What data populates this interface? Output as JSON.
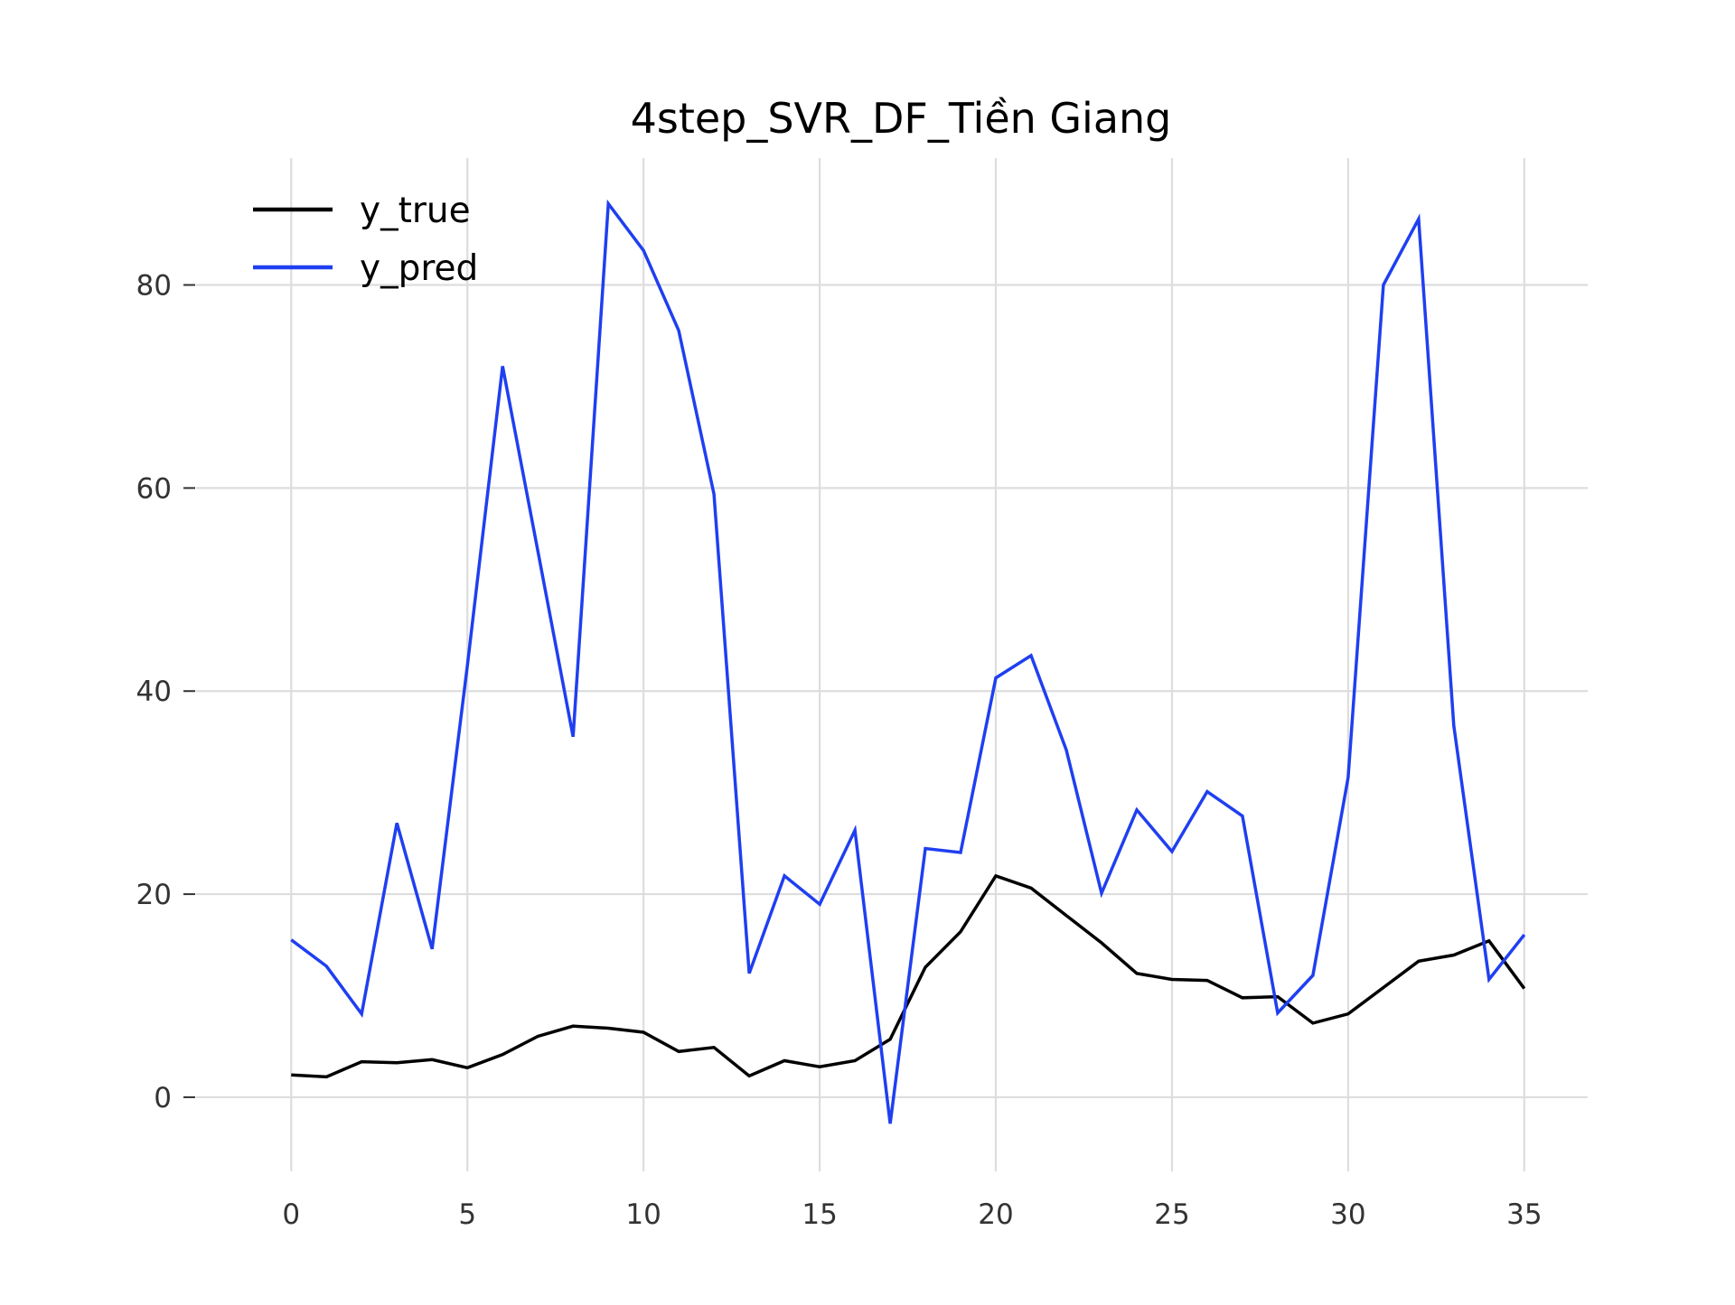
{
  "chart_data": {
    "type": "line",
    "title": "4step_SVR_DF_Tiền Giang",
    "xlabel": "",
    "ylabel": "",
    "x": [
      0,
      1,
      2,
      3,
      4,
      5,
      6,
      7,
      8,
      9,
      10,
      11,
      12,
      13,
      14,
      15,
      16,
      17,
      18,
      19,
      20,
      21,
      22,
      23,
      24,
      25,
      26,
      27,
      28,
      29,
      30,
      31,
      32,
      33,
      34,
      35
    ],
    "xlim": [
      -2.7,
      36.8
    ],
    "ylim": [
      -7.3,
      92.5
    ],
    "xticks": [
      0,
      5,
      10,
      15,
      20,
      25,
      30,
      35
    ],
    "yticks": [
      0,
      20,
      40,
      60,
      80
    ],
    "grid": true,
    "legend_position": "top-left",
    "series": [
      {
        "name": "y_true",
        "color": "#000000",
        "values": [
          2.2,
          2.0,
          3.5,
          3.4,
          3.7,
          2.9,
          4.2,
          6.0,
          7.0,
          6.8,
          6.4,
          4.5,
          4.9,
          2.1,
          3.6,
          3.0,
          3.6,
          5.7,
          12.8,
          16.3,
          21.8,
          20.6,
          17.9,
          15.2,
          12.2,
          11.6,
          11.5,
          9.8,
          9.9,
          7.3,
          8.2,
          10.8,
          13.4,
          14.0,
          15.4,
          10.7
        ]
      },
      {
        "name": "y_pred",
        "color": "#1f3ff0",
        "values": [
          15.5,
          12.9,
          8.2,
          27.0,
          14.6,
          42.5,
          72.0,
          53.8,
          35.5,
          88.0,
          83.4,
          75.5,
          59.4,
          12.2,
          21.8,
          19.0,
          26.3,
          -2.6,
          24.5,
          24.1,
          41.3,
          43.5,
          34.2,
          20.1,
          28.3,
          24.2,
          30.1,
          27.7,
          8.3,
          12.0,
          31.5,
          80.0,
          86.5,
          36.6,
          11.6,
          16.0
        ]
      }
    ]
  }
}
